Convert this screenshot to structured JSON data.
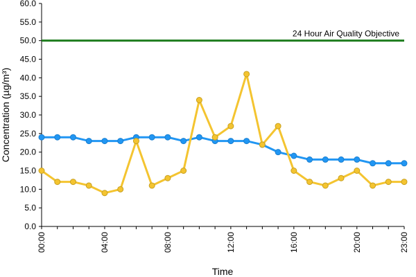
{
  "chart_data": {
    "type": "line",
    "xlabel": "Time",
    "ylabel": "Concentration (µg/m³)",
    "ylim": [
      0,
      60
    ],
    "yticks": [
      "0.0",
      "5.0",
      "10.0",
      "15.0",
      "20.0",
      "25.0",
      "30.0",
      "35.0",
      "40.0",
      "45.0",
      "50.0",
      "55.0",
      "60.0"
    ],
    "xticks": [
      "00:00",
      "04:00",
      "08:00",
      "12:00",
      "16:00",
      "20:00",
      "23:00"
    ],
    "xtick_hours": [
      0,
      4,
      8,
      12,
      16,
      20,
      23
    ],
    "x": [
      "00:00",
      "01:00",
      "02:00",
      "03:00",
      "04:00",
      "05:00",
      "06:00",
      "07:00",
      "08:00",
      "09:00",
      "10:00",
      "11:00",
      "12:00",
      "13:00",
      "14:00",
      "15:00",
      "16:00",
      "17:00",
      "18:00",
      "19:00",
      "20:00",
      "21:00",
      "22:00",
      "23:00"
    ],
    "grid": false,
    "series": [
      {
        "color": "#2196f3",
        "values": [
          24,
          24,
          24,
          23,
          23,
          23,
          24,
          24,
          24,
          23,
          24,
          23,
          23,
          23,
          22,
          20,
          19,
          18,
          18,
          18,
          18,
          17,
          17,
          17
        ]
      },
      {
        "color": "#f4c430",
        "values": [
          15,
          12,
          12,
          11,
          9,
          10,
          23,
          11,
          13,
          15,
          34,
          24,
          27,
          41,
          22,
          27,
          15,
          12,
          11,
          13,
          15,
          11,
          12,
          12
        ]
      }
    ],
    "reference_line": {
      "value": 50,
      "label": "24 Hour Air Quality Objective",
      "color": "#1e7d1e"
    }
  }
}
